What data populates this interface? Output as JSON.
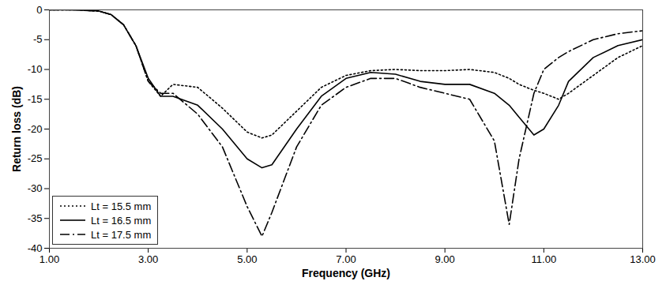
{
  "chart_data": {
    "type": "line",
    "xlabel": "Frequency (GHz)",
    "ylabel": "Return loss (dB)",
    "x": [
      1,
      1.5,
      2,
      2.25,
      2.5,
      2.75,
      3,
      3.25,
      3.5,
      4,
      4.5,
      5,
      5.3,
      5.5,
      6,
      6.5,
      7,
      7.5,
      8,
      8.5,
      9,
      9.5,
      10,
      10.3,
      10.5,
      10.8,
      11,
      11.3,
      11.5,
      12,
      12.5,
      13
    ],
    "series": [
      {
        "name": "Lt = 15.5 mm",
        "color": "#000000",
        "line_style": "dotted",
        "values": [
          0,
          0,
          -0.2,
          -0.8,
          -2.5,
          -6,
          -12,
          -14.5,
          -12.5,
          -13,
          -16.5,
          -20.5,
          -21.5,
          -21,
          -17,
          -13,
          -11,
          -10.2,
          -10,
          -10.2,
          -10.2,
          -10,
          -10.5,
          -11.5,
          -12.5,
          -13.5,
          -14,
          -15,
          -14,
          -11,
          -8,
          -6
        ]
      },
      {
        "name": "Lt = 16.5 mm",
        "color": "#000000",
        "line_style": "solid",
        "values": [
          0,
          0,
          -0.2,
          -0.8,
          -2.5,
          -6,
          -11.5,
          -14.5,
          -14.5,
          -16,
          -20,
          -25,
          -26.5,
          -26,
          -20,
          -14.5,
          -11.5,
          -10.5,
          -10.8,
          -12,
          -12.5,
          -12.5,
          -14,
          -16,
          -18,
          -21,
          -20,
          -16,
          -12,
          -8,
          -6,
          -5
        ]
      },
      {
        "name": "Lt = 17.5 mm",
        "color": "#000000",
        "line_style": "dashdot",
        "values": [
          0,
          0,
          -0.2,
          -0.8,
          -2.5,
          -6,
          -12,
          -14,
          -14,
          -17.5,
          -23,
          -33,
          -38,
          -34,
          -23,
          -16,
          -13,
          -11.5,
          -11.5,
          -13,
          -14,
          -15,
          -22,
          -36,
          -25,
          -14,
          -10,
          -8,
          -7,
          -5,
          -4,
          -3.5
        ]
      }
    ],
    "xlim": [
      1,
      13
    ],
    "xticks": [
      {
        "value": 1,
        "label": "1.00"
      },
      {
        "value": 3,
        "label": "3.00"
      },
      {
        "value": 5,
        "label": "5.00"
      },
      {
        "value": 7,
        "label": "7.00"
      },
      {
        "value": 9,
        "label": "9.00"
      },
      {
        "value": 11,
        "label": "11.00"
      },
      {
        "value": 13,
        "label": "13.00"
      }
    ],
    "ylim": [
      -40,
      0
    ],
    "yticks": [
      -40,
      -35,
      -30,
      -25,
      -20,
      -15,
      -10,
      -5,
      0
    ],
    "grid": false,
    "legend": "bottom-left"
  }
}
